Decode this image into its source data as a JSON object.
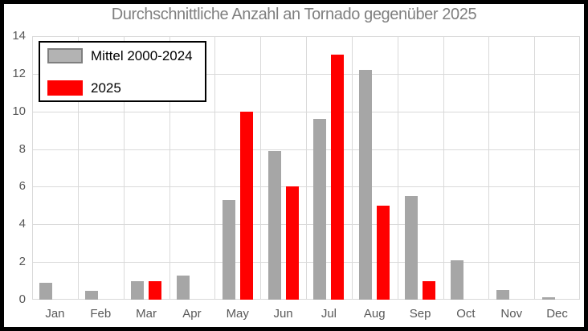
{
  "title": "Durchschnittliche Anzahl an Tornado gegenüber 2025",
  "legend": {
    "items": [
      {
        "label": "Mittel 2000-2024",
        "color": "#b3b3b3",
        "border": "#7f7f7f"
      },
      {
        "label": "2025",
        "color": "#ff0000",
        "border": "#ff0000"
      }
    ],
    "position": "top-left"
  },
  "chart_data": {
    "type": "bar",
    "categories": [
      "Jan",
      "Feb",
      "Mar",
      "Apr",
      "May",
      "Jun",
      "Jul",
      "Aug",
      "Sep",
      "Oct",
      "Nov",
      "Dec"
    ],
    "series": [
      {
        "name": "Mittel 2000-2024",
        "color": "#a6a6a6",
        "values": [
          0.9,
          0.45,
          1.0,
          1.3,
          5.3,
          7.9,
          9.6,
          12.2,
          5.5,
          2.1,
          0.5,
          0.15
        ]
      },
      {
        "name": "2025",
        "color": "#ff0000",
        "values": [
          0,
          0,
          1,
          0,
          10,
          6,
          13,
          5,
          1,
          0,
          0,
          0
        ]
      }
    ],
    "title": "Durchschnittliche Anzahl an Tornado gegenüber 2025",
    "xlabel": "",
    "ylabel": "",
    "ylim": [
      0,
      14
    ],
    "yticks": [
      0,
      2,
      4,
      6,
      8,
      10,
      12,
      14
    ],
    "grid": true,
    "legend_position": "top-left"
  },
  "colors": {
    "frame_border": "#000000",
    "gridline": "#d9d9d9",
    "tick_label": "#595959",
    "title_text": "#7f7f7f",
    "background": "#ffffff"
  }
}
